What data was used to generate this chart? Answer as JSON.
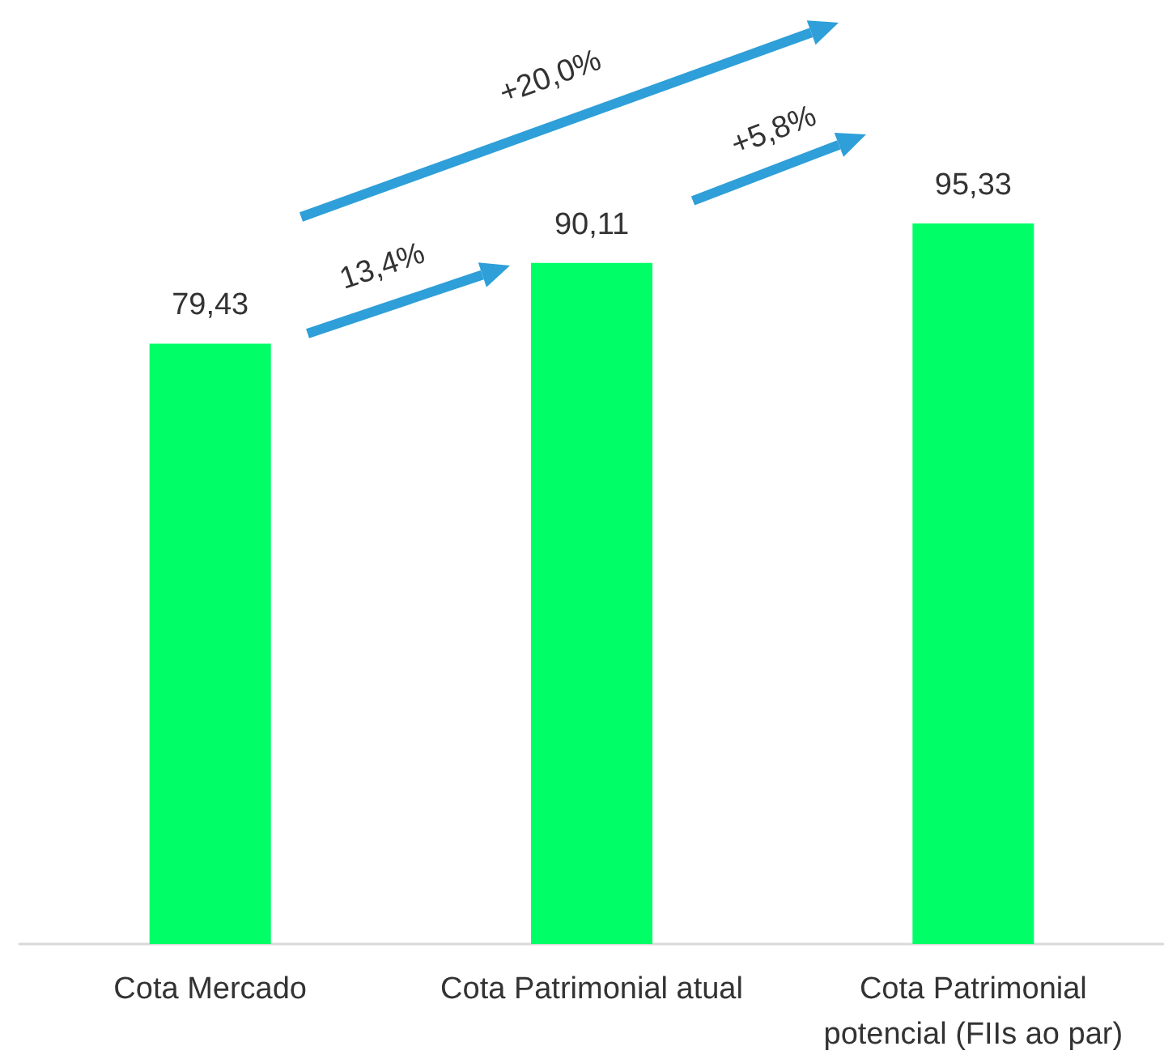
{
  "chart_data": {
    "type": "bar",
    "categories": [
      "Cota Mercado",
      "Cota Patrimonial atual",
      "Cota Patrimonial\npotencial (FIIs ao par)"
    ],
    "values": [
      79.43,
      90.11,
      95.33
    ],
    "value_labels": [
      "79,43",
      "90,11",
      "95,33"
    ],
    "color": "#00ff66",
    "annotations": [
      "13,4%",
      "+5,8%",
      "+20,0%"
    ]
  }
}
